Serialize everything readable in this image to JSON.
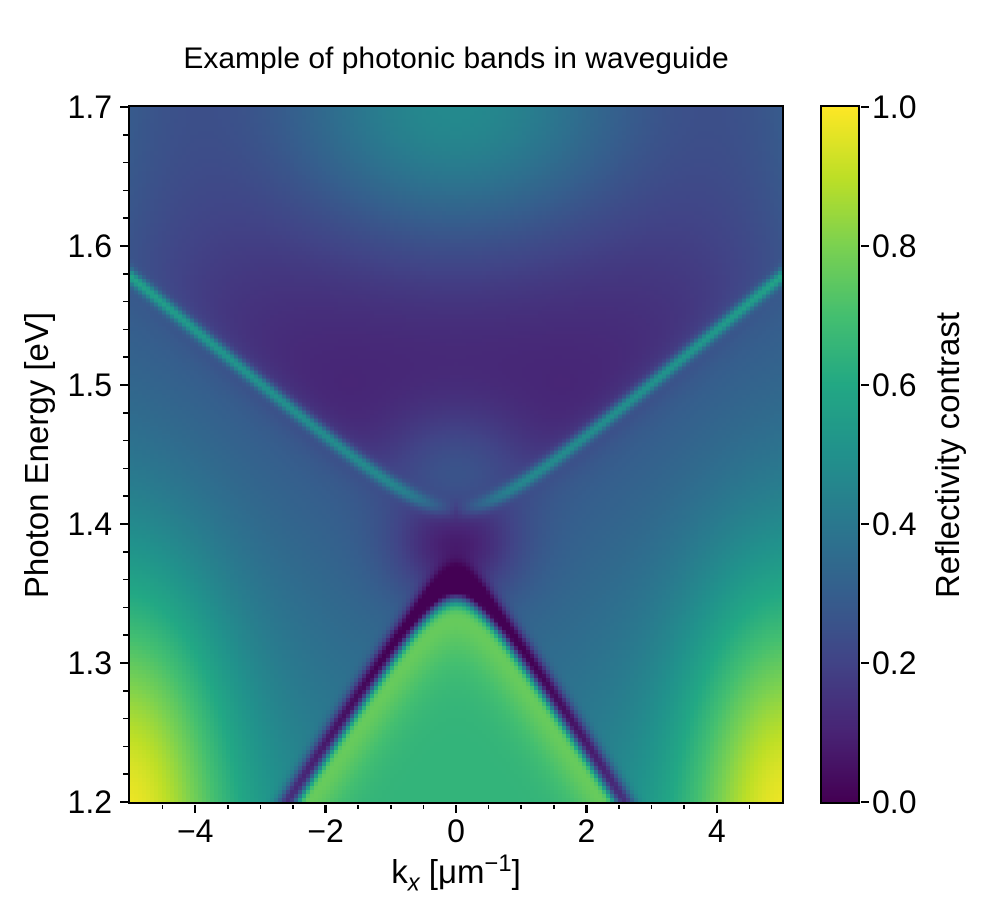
{
  "figure": {
    "background": "#ffffff",
    "text_color": "#000000"
  },
  "chart_data": {
    "type": "heatmap",
    "title": "Example of photonic bands in waveguide",
    "xlabel": {
      "prefix": "k",
      "subscript": "x",
      "mid": " [μm",
      "superscript": "−1",
      "suffix": "]"
    },
    "ylabel": "Photon Energy [eV]",
    "xlim": [
      -5,
      5
    ],
    "ylim": [
      1.2,
      1.7
    ],
    "clim": [
      0.0,
      1.0
    ],
    "grid_lines": "off",
    "x_ticks": {
      "major": [
        -4,
        -2,
        0,
        2,
        4
      ],
      "major_labels": [
        "−4",
        "−2",
        "0",
        "2",
        "4"
      ],
      "minor_step": 0.5
    },
    "y_ticks": {
      "major": [
        1.2,
        1.3,
        1.4,
        1.5,
        1.6,
        1.7
      ],
      "major_labels": [
        "1.2",
        "1.3",
        "1.4",
        "1.5",
        "1.6",
        "1.7"
      ],
      "minor_step": 0.02
    },
    "colorbar": {
      "label": "Reflectivity contrast",
      "ticks": [
        0.0,
        0.2,
        0.4,
        0.6,
        0.8,
        1.0
      ],
      "tick_labels": [
        "0.0",
        "0.2",
        "0.4",
        "0.6",
        "0.8",
        "1.0"
      ],
      "position": "right"
    },
    "colormap": {
      "name": "viridis",
      "stops": [
        "#440154",
        "#482475",
        "#414487",
        "#355f8d",
        "#2a788e",
        "#21918c",
        "#22a884",
        "#44bf70",
        "#7ad151",
        "#bddf26",
        "#fde725"
      ]
    },
    "field_model": {
      "description": "Reflectivity contrast R(kx,E) of a planar waveguide photonic band structure. Two counter-propagating guided modes anticross at kx=0 opening a stop band: the upper band has its minimum at 1.411 eV (kx=0) and rises to 1.578 eV at |kx|=5, appearing as a narrow bright teal ridge that fades near kx=0; the lower band has its maximum at 1.344 eV (kx=0) and leaves the plot bottom (1.2 eV) near |kx|=2.6, appearing as a bright green dome outlined by a dark trough. Background is dark (R~0.1) above the upper band with a teal glow (R~0.47) at top center and blue top corners, teal-green (R~0.3-0.6) below the band, bright yellow (R~1.0) in the bottom corners, and a dark neck (R~0.05-0.15) in the gap around (0, 1.37-1.40).",
      "grid": {
        "nx": 163,
        "ny": 174
      },
      "upper_band_points": [
        [
          -5,
          1.578
        ],
        [
          -4,
          1.537
        ],
        [
          -3,
          1.501
        ],
        [
          -2,
          1.464
        ],
        [
          -1,
          1.429
        ],
        [
          0,
          1.411
        ],
        [
          1,
          1.429
        ],
        [
          2,
          1.464
        ],
        [
          3,
          1.501
        ],
        [
          4,
          1.537
        ],
        [
          5,
          1.578
        ]
      ],
      "lower_band_points": [
        [
          -2.6,
          1.2
        ],
        [
          -2,
          1.225
        ],
        [
          -1,
          1.298
        ],
        [
          0,
          1.344
        ],
        [
          1,
          1.298
        ],
        [
          2,
          1.225
        ],
        [
          2.6,
          1.2
        ]
      ],
      "params": {
        "E0": 1.3775,
        "du": 0.0335,
        "vu": 0.0396,
        "dl": 0.0335,
        "vl": 0.0725,
        "mask_u": 0.01,
        "mask_l": 0.003,
        "Etop": 1.7,
        "Ebot": 1.2,
        "kmax": 5,
        "above_base": 0.09,
        "glow_amp": 0.38,
        "glow_wE": 0.105,
        "glow_wK": 3.0,
        "corner_top_amp": 0.17,
        "corner_top_wE": 0.35,
        "corner_top_pow": 3,
        "vfill_amp": 0.17,
        "vfill_wK": 1.2,
        "vfill_E": 1.431,
        "vfill_wE": 0.05,
        "below_base": 0.28,
        "below_grad": 0.3,
        "below_span": 0.45,
        "below_pow": 1.2,
        "corner_bot_amp": 0.45,
        "corner_bot_wE": 0.16,
        "corner_bot_wK": 1.5,
        "neck_amp": 0.22,
        "neck_wK": 0.95,
        "neck_E": 1.385,
        "neck_wE": 0.042,
        "trough_amp": 0.36,
        "trough_off": 0.013,
        "trough_w": 0.012,
        "dome_base": 0.65,
        "dome_rim_amp": 0.13,
        "dome_rim_w": 0.045,
        "ridge_amp": 0.32,
        "ridge_w": 0.006
      }
    }
  }
}
